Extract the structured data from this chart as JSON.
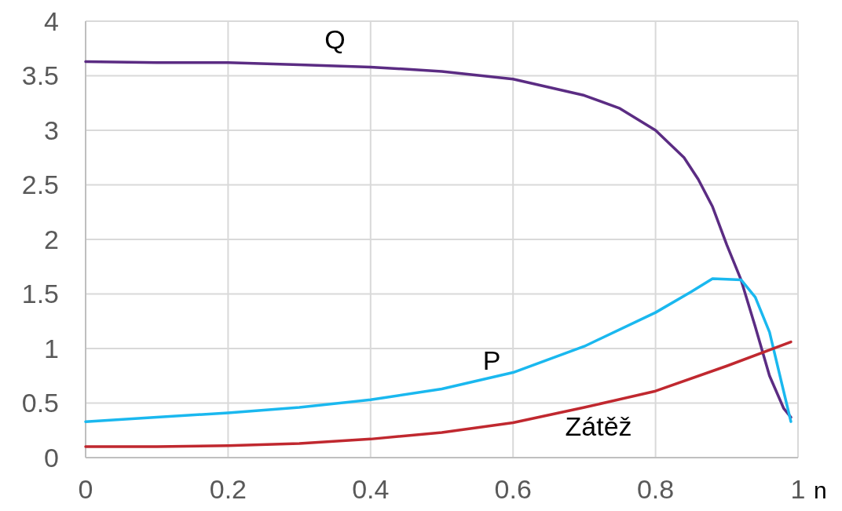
{
  "chart_data": {
    "type": "line",
    "xlabel": "n",
    "xlim": [
      0,
      1
    ],
    "xticks": [
      0,
      0.2,
      0.4,
      0.6,
      0.8,
      1
    ],
    "ylim": [
      0,
      4
    ],
    "yticks": [
      0,
      0.5,
      1,
      1.5,
      2,
      2.5,
      3,
      3.5,
      4
    ],
    "grid": true,
    "marker": "none",
    "line_style": "solid",
    "series": [
      {
        "name": "Q",
        "color": "#5b2c83",
        "x": [
          0,
          0.1,
          0.2,
          0.3,
          0.4,
          0.5,
          0.6,
          0.7,
          0.75,
          0.8,
          0.84,
          0.86,
          0.88,
          0.9,
          0.92,
          0.94,
          0.96,
          0.98,
          0.99
        ],
        "values": [
          3.63,
          3.62,
          3.62,
          3.6,
          3.58,
          3.54,
          3.47,
          3.32,
          3.2,
          3.0,
          2.75,
          2.55,
          2.3,
          1.95,
          1.63,
          1.2,
          0.75,
          0.45,
          0.37
        ]
      },
      {
        "name": "P",
        "color": "#1ab8ef",
        "x": [
          0,
          0.1,
          0.2,
          0.3,
          0.4,
          0.5,
          0.6,
          0.7,
          0.8,
          0.85,
          0.88,
          0.92,
          0.94,
          0.96,
          0.99
        ],
        "values": [
          0.33,
          0.37,
          0.41,
          0.46,
          0.53,
          0.63,
          0.78,
          1.02,
          1.33,
          1.52,
          1.64,
          1.63,
          1.47,
          1.15,
          0.33
        ]
      },
      {
        "name": "Zátěž",
        "color": "#c0282f",
        "x": [
          0,
          0.1,
          0.2,
          0.3,
          0.4,
          0.5,
          0.6,
          0.7,
          0.8,
          0.9,
          0.99
        ],
        "values": [
          0.1,
          0.1,
          0.11,
          0.13,
          0.17,
          0.23,
          0.32,
          0.46,
          0.61,
          0.84,
          1.06
        ]
      }
    ]
  }
}
